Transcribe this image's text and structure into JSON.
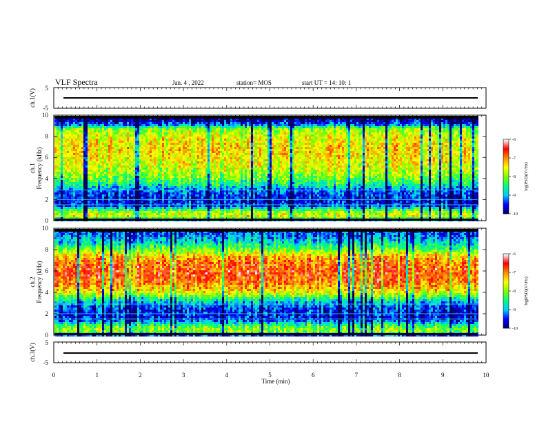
{
  "header": {
    "title": "VLF Spectra",
    "date": "Jan. 4 , 2022",
    "station": "station= MOS",
    "start": "start UT =   14: 10: 1"
  },
  "colors": {
    "scale": [
      "#000060",
      "#0000ff",
      "#00c8ff",
      "#00ff7f",
      "#7fff00",
      "#ffff00",
      "#ff8c00",
      "#ff0000",
      "#ffffff"
    ]
  },
  "chart_data": [
    {
      "type": "line",
      "name": "ch1-voltage",
      "ylabel": "ch.1(V)",
      "ylim": [
        -5,
        5
      ],
      "yticks": [
        "5",
        "-5"
      ],
      "x": [
        0,
        10
      ],
      "y": [
        0,
        0
      ]
    },
    {
      "type": "heatmap",
      "name": "ch1-spectrogram",
      "ylabel": "ch.1\nFrequency (kHz)",
      "xlim": [
        0,
        10
      ],
      "ylim": [
        0,
        10
      ],
      "yticks": [
        "0",
        "2",
        "4",
        "6",
        "8",
        "10"
      ],
      "data_end_min": 9.8,
      "colorbar": {
        "label": "log(PSD)(V²/Hz)",
        "range": [
          -10,
          -6
        ],
        "ticks": [
          "-6",
          "-7",
          "-8",
          "-9",
          "-10"
        ]
      },
      "spectral_profile": {
        "freq_khz": [
          0,
          0.5,
          1.0,
          1.5,
          2.0,
          2.5,
          3.0,
          3.5,
          4.0,
          5.0,
          6.0,
          7.0,
          8.0,
          8.8,
          9.2,
          9.6,
          10
        ],
        "median_log_psd": [
          -9.6,
          -7.6,
          -8.0,
          -9.4,
          -9.6,
          -9.4,
          -9.2,
          -8.6,
          -8.2,
          -7.7,
          -7.5,
          -7.4,
          -7.6,
          -8.0,
          -9.3,
          -9.8,
          -10
        ]
      }
    },
    {
      "type": "heatmap",
      "name": "ch2-spectrogram",
      "ylabel": "ch.2\nFrequency (kHz)",
      "xlim": [
        0,
        10
      ],
      "ylim": [
        0,
        10
      ],
      "yticks": [
        "0",
        "2",
        "4",
        "6",
        "8",
        "10"
      ],
      "data_end_min": 9.8,
      "colorbar": {
        "label": "log(PSD)(V²/Hz)",
        "range": [
          -10,
          -6
        ],
        "ticks": [
          "-6",
          "-7",
          "-8",
          "-9",
          "-10"
        ]
      },
      "spectral_profile": {
        "freq_khz": [
          0,
          0.5,
          1.0,
          1.5,
          2.0,
          2.5,
          3.0,
          3.5,
          4.0,
          5.0,
          6.0,
          7.0,
          7.6,
          8.2,
          8.8,
          9.4,
          10
        ],
        "median_log_psd": [
          -9.6,
          -7.8,
          -8.4,
          -9.4,
          -9.5,
          -9.4,
          -9.1,
          -8.5,
          -7.6,
          -6.9,
          -6.7,
          -6.9,
          -7.4,
          -8.2,
          -8.8,
          -9.2,
          -9.4
        ]
      }
    },
    {
      "type": "line",
      "name": "ch3-voltage",
      "ylabel": "ch.3(V)",
      "ylim": [
        -5,
        5
      ],
      "yticks": [
        "5",
        "-5"
      ],
      "x": [
        0,
        10
      ],
      "y": [
        0,
        0
      ]
    }
  ],
  "xaxis": {
    "label": "Time (min)",
    "ticks": [
      "0",
      "1",
      "2",
      "3",
      "4",
      "5",
      "6",
      "7",
      "8",
      "9",
      "10"
    ]
  }
}
